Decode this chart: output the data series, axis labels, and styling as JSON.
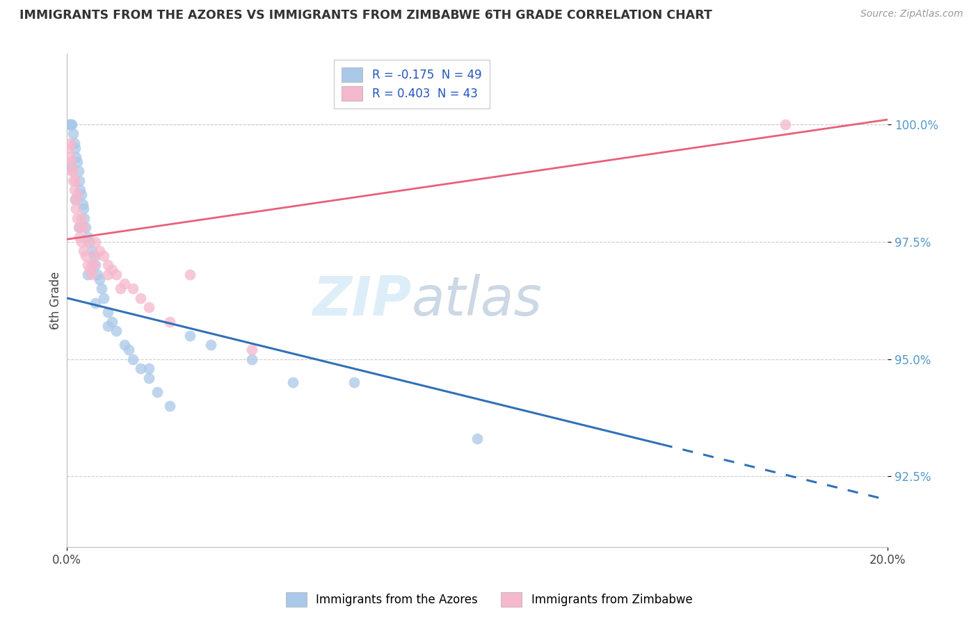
{
  "title": "IMMIGRANTS FROM THE AZORES VS IMMIGRANTS FROM ZIMBABWE 6TH GRADE CORRELATION CHART",
  "source": "Source: ZipAtlas.com",
  "ylabel": "6th Grade",
  "yticks": [
    92.5,
    95.0,
    97.5,
    100.0
  ],
  "ytick_labels": [
    "92.5%",
    "95.0%",
    "97.5%",
    "100.0%"
  ],
  "xlim": [
    0.0,
    20.0
  ],
  "ylim": [
    91.0,
    101.5
  ],
  "legend_blue_label": "Immigrants from the Azores",
  "legend_pink_label": "Immigrants from Zimbabwe",
  "R_blue": -0.175,
  "N_blue": 49,
  "R_pink": 0.403,
  "N_pink": 43,
  "blue_color": "#aac8e8",
  "pink_color": "#f5b8cc",
  "blue_line_color": "#3070b8",
  "pink_line_color": "#e8607a",
  "blue_line_x0": 0.0,
  "blue_line_y0": 96.3,
  "blue_line_x1": 20.0,
  "blue_line_y1": 92.0,
  "blue_solid_end": 14.5,
  "pink_line_x0": 0.0,
  "pink_line_y0": 97.55,
  "pink_line_x1": 20.0,
  "pink_line_y1": 100.1,
  "azores_x": [
    0.05,
    0.08,
    0.1,
    0.12,
    0.15,
    0.18,
    0.2,
    0.22,
    0.25,
    0.28,
    0.3,
    0.32,
    0.35,
    0.38,
    0.4,
    0.42,
    0.45,
    0.5,
    0.55,
    0.6,
    0.65,
    0.7,
    0.75,
    0.8,
    0.85,
    0.9,
    1.0,
    1.1,
    1.2,
    1.4,
    1.6,
    1.8,
    2.0,
    2.2,
    2.5,
    3.0,
    3.5,
    4.5,
    5.5,
    7.0,
    0.1,
    0.2,
    0.3,
    0.5,
    0.7,
    1.0,
    1.5,
    2.0,
    10.0
  ],
  "azores_y": [
    100.0,
    100.0,
    100.0,
    100.0,
    99.8,
    99.6,
    99.5,
    99.3,
    99.2,
    99.0,
    98.8,
    98.6,
    98.5,
    98.3,
    98.2,
    98.0,
    97.8,
    97.6,
    97.5,
    97.3,
    97.2,
    97.0,
    96.8,
    96.7,
    96.5,
    96.3,
    96.0,
    95.8,
    95.6,
    95.3,
    95.0,
    94.8,
    94.6,
    94.3,
    94.0,
    95.5,
    95.3,
    95.0,
    94.5,
    94.5,
    99.1,
    98.4,
    97.8,
    96.8,
    96.2,
    95.7,
    95.2,
    94.8,
    93.3
  ],
  "zimbabwe_x": [
    0.05,
    0.08,
    0.1,
    0.12,
    0.15,
    0.18,
    0.2,
    0.22,
    0.25,
    0.28,
    0.3,
    0.35,
    0.4,
    0.45,
    0.5,
    0.55,
    0.6,
    0.65,
    0.7,
    0.8,
    0.9,
    1.0,
    1.1,
    1.2,
    1.4,
    1.6,
    1.8,
    2.0,
    2.5,
    3.0,
    0.15,
    0.25,
    0.35,
    0.5,
    0.7,
    1.0,
    1.3,
    4.5,
    17.5,
    0.08,
    0.2,
    0.4,
    0.6
  ],
  "zimbabwe_y": [
    99.5,
    99.3,
    99.2,
    99.0,
    98.8,
    98.6,
    98.4,
    98.2,
    98.0,
    97.8,
    97.6,
    97.5,
    97.3,
    97.2,
    97.0,
    96.9,
    96.8,
    97.0,
    97.5,
    97.3,
    97.2,
    97.0,
    96.9,
    96.8,
    96.6,
    96.5,
    96.3,
    96.1,
    95.8,
    96.8,
    99.0,
    98.5,
    98.0,
    97.5,
    97.2,
    96.8,
    96.5,
    95.2,
    100.0,
    99.6,
    98.8,
    97.8,
    97.0
  ]
}
